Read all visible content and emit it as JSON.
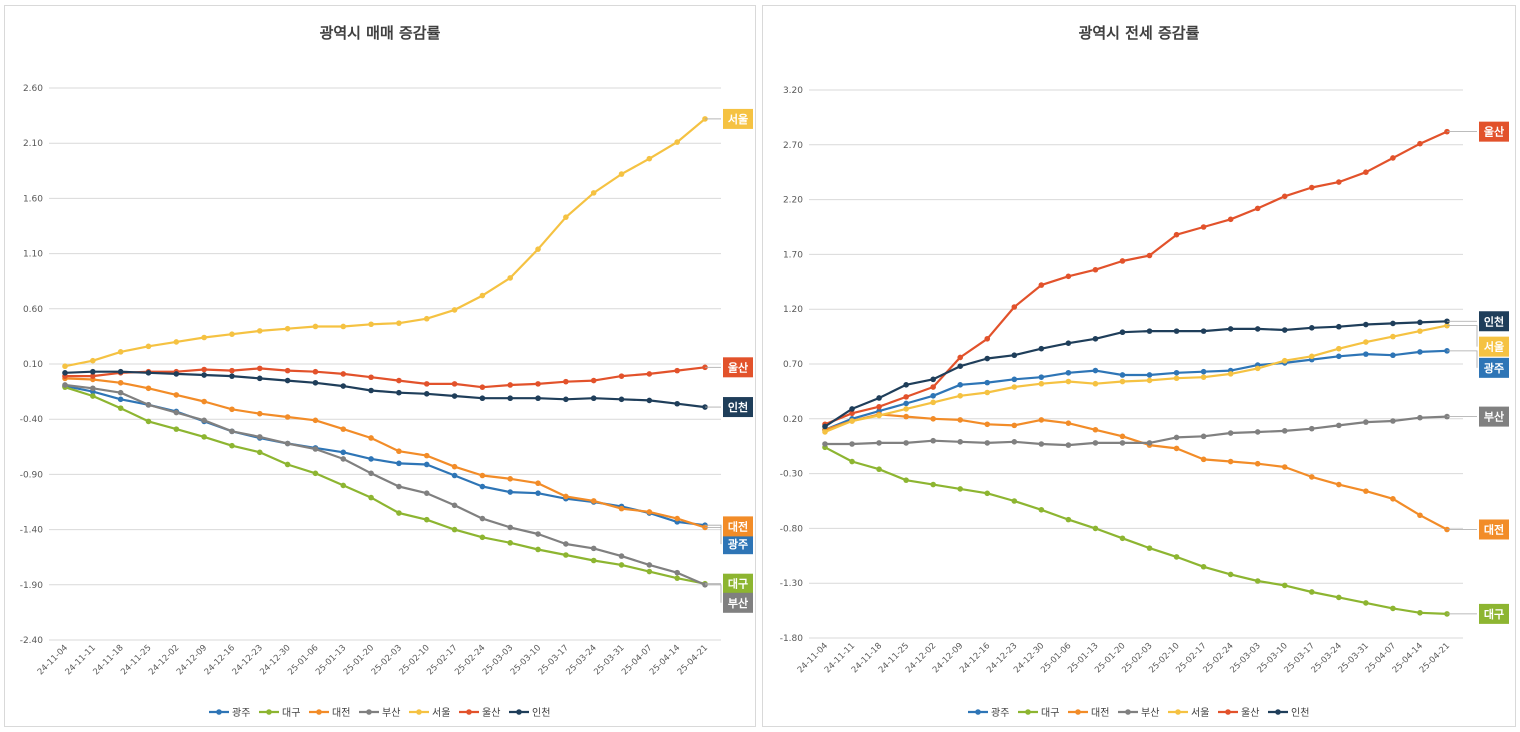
{
  "chart_data": [
    {
      "type": "line",
      "title": "광역시 매매 증감률",
      "xlabel": "",
      "ylabel": "",
      "ylim": [
        -2.4,
        2.6
      ],
      "yticks": [
        "2.60",
        "2.10",
        "1.60",
        "1.10",
        "0.60",
        "0.10",
        "-0.40",
        "-0.90",
        "-1.40",
        "-1.90",
        "-2.40"
      ],
      "grid": true,
      "legend_position": "bottom",
      "x": [
        "24-11-04",
        "24-11-11",
        "24-11-18",
        "24-11-25",
        "24-12-02",
        "24-12-09",
        "24-12-16",
        "24-12-23",
        "24-12-30",
        "25-01-06",
        "25-01-13",
        "25-01-20",
        "25-02-03",
        "25-02-10",
        "25-02-17",
        "25-02-24",
        "25-03-03",
        "25-03-10",
        "25-03-17",
        "25-03-24",
        "25-03-31",
        "25-04-07",
        "25-04-14",
        "25-04-21"
      ],
      "series": [
        {
          "name": "광주",
          "color": "#2E75B6",
          "end_label": "광주",
          "values": [
            -0.1,
            -0.15,
            -0.22,
            -0.27,
            -0.33,
            -0.42,
            -0.51,
            -0.57,
            -0.62,
            -0.66,
            -0.7,
            -0.76,
            -0.8,
            -0.81,
            -0.91,
            -1.01,
            -1.06,
            -1.07,
            -1.12,
            -1.15,
            -1.19,
            -1.25,
            -1.33,
            -1.36
          ]
        },
        {
          "name": "대구",
          "color": "#8DB531",
          "end_label": "대구",
          "values": [
            -0.11,
            -0.19,
            -0.3,
            -0.42,
            -0.49,
            -0.56,
            -0.64,
            -0.7,
            -0.81,
            -0.89,
            -1.0,
            -1.11,
            -1.25,
            -1.31,
            -1.4,
            -1.47,
            -1.52,
            -1.58,
            -1.63,
            -1.68,
            -1.72,
            -1.78,
            -1.84,
            -1.89
          ]
        },
        {
          "name": "대전",
          "color": "#F28C28",
          "end_label": "대전",
          "values": [
            -0.03,
            -0.04,
            -0.07,
            -0.12,
            -0.18,
            -0.24,
            -0.31,
            -0.35,
            -0.38,
            -0.41,
            -0.49,
            -0.57,
            -0.69,
            -0.73,
            -0.83,
            -0.91,
            -0.94,
            -0.98,
            -1.1,
            -1.14,
            -1.21,
            -1.24,
            -1.3,
            -1.38
          ]
        },
        {
          "name": "부산",
          "color": "#808080",
          "end_label": "부산",
          "values": [
            -0.09,
            -0.12,
            -0.16,
            -0.27,
            -0.34,
            -0.41,
            -0.51,
            -0.56,
            -0.62,
            -0.67,
            -0.76,
            -0.89,
            -1.01,
            -1.07,
            -1.18,
            -1.3,
            -1.38,
            -1.44,
            -1.53,
            -1.57,
            -1.64,
            -1.72,
            -1.79,
            -1.9
          ]
        },
        {
          "name": "서울",
          "color": "#F5C242",
          "end_label": "서울",
          "values": [
            0.08,
            0.13,
            0.21,
            0.26,
            0.3,
            0.34,
            0.37,
            0.4,
            0.42,
            0.44,
            0.44,
            0.46,
            0.47,
            0.51,
            0.59,
            0.72,
            0.88,
            1.14,
            1.43,
            1.65,
            1.82,
            1.96,
            2.11,
            2.32
          ]
        },
        {
          "name": "울산",
          "color": "#E2522B",
          "end_label": "울산",
          "values": [
            -0.01,
            -0.01,
            0.02,
            0.03,
            0.03,
            0.05,
            0.04,
            0.06,
            0.04,
            0.03,
            0.01,
            -0.02,
            -0.05,
            -0.08,
            -0.08,
            -0.11,
            -0.09,
            -0.08,
            -0.06,
            -0.05,
            -0.01,
            0.01,
            0.04,
            0.07
          ]
        },
        {
          "name": "인천",
          "color": "#1F3E5A",
          "end_label": "인천",
          "values": [
            0.02,
            0.03,
            0.03,
            0.02,
            0.01,
            0.0,
            -0.01,
            -0.03,
            -0.05,
            -0.07,
            -0.1,
            -0.14,
            -0.16,
            -0.17,
            -0.19,
            -0.21,
            -0.21,
            -0.21,
            -0.22,
            -0.21,
            -0.22,
            -0.23,
            -0.26,
            -0.29
          ]
        }
      ]
    },
    {
      "type": "line",
      "title": "광역시 전세 증감률",
      "xlabel": "",
      "ylabel": "",
      "ylim": [
        -1.8,
        3.2
      ],
      "yticks": [
        "3.20",
        "2.70",
        "2.20",
        "1.70",
        "1.20",
        "0.70",
        "0.20",
        "-0.30",
        "-0.80",
        "-1.30",
        "-1.80"
      ],
      "grid": true,
      "legend_position": "bottom",
      "x": [
        "24-11-04",
        "24-11-11",
        "24-11-18",
        "24-11-25",
        "24-12-02",
        "24-12-09",
        "24-12-16",
        "24-12-23",
        "24-12-30",
        "25-01-06",
        "25-01-13",
        "25-01-20",
        "25-02-03",
        "25-02-10",
        "25-02-17",
        "25-02-24",
        "25-03-03",
        "25-03-10",
        "25-03-17",
        "25-03-24",
        "25-03-31",
        "25-04-07",
        "25-04-14",
        "25-04-21"
      ],
      "series": [
        {
          "name": "광주",
          "color": "#2E75B6",
          "end_label": "광주",
          "values": [
            0.1,
            0.2,
            0.27,
            0.34,
            0.41,
            0.51,
            0.53,
            0.56,
            0.58,
            0.62,
            0.64,
            0.6,
            0.6,
            0.62,
            0.63,
            0.64,
            0.69,
            0.71,
            0.74,
            0.77,
            0.79,
            0.78,
            0.81,
            0.82
          ]
        },
        {
          "name": "대구",
          "color": "#8DB531",
          "end_label": "대구",
          "values": [
            -0.06,
            -0.19,
            -0.26,
            -0.36,
            -0.4,
            -0.44,
            -0.48,
            -0.55,
            -0.63,
            -0.72,
            -0.8,
            -0.89,
            -0.98,
            -1.06,
            -1.15,
            -1.22,
            -1.28,
            -1.32,
            -1.38,
            -1.43,
            -1.48,
            -1.53,
            -1.57,
            -1.58
          ]
        },
        {
          "name": "대전",
          "color": "#F28C28",
          "end_label": "대전",
          "values": [
            0.1,
            0.18,
            0.24,
            0.22,
            0.2,
            0.19,
            0.15,
            0.14,
            0.19,
            0.16,
            0.1,
            0.04,
            -0.04,
            -0.07,
            -0.17,
            -0.19,
            -0.21,
            -0.24,
            -0.33,
            -0.4,
            -0.46,
            -0.53,
            -0.68,
            -0.81
          ]
        },
        {
          "name": "부산",
          "color": "#808080",
          "end_label": "부산",
          "values": [
            -0.03,
            -0.03,
            -0.02,
            -0.02,
            0.0,
            -0.01,
            -0.02,
            -0.01,
            -0.03,
            -0.04,
            -0.02,
            -0.02,
            -0.02,
            0.03,
            0.04,
            0.07,
            0.08,
            0.09,
            0.11,
            0.14,
            0.17,
            0.18,
            0.21,
            0.22
          ]
        },
        {
          "name": "서울",
          "color": "#F5C242",
          "end_label": "서울",
          "values": [
            0.08,
            0.18,
            0.23,
            0.29,
            0.35,
            0.41,
            0.44,
            0.49,
            0.52,
            0.54,
            0.52,
            0.54,
            0.55,
            0.57,
            0.58,
            0.61,
            0.66,
            0.73,
            0.77,
            0.84,
            0.9,
            0.95,
            1.0,
            1.05
          ]
        },
        {
          "name": "울산",
          "color": "#E2522B",
          "end_label": "울산",
          "values": [
            0.15,
            0.25,
            0.31,
            0.4,
            0.49,
            0.76,
            0.93,
            1.22,
            1.42,
            1.5,
            1.56,
            1.64,
            1.69,
            1.88,
            1.95,
            2.02,
            2.12,
            2.23,
            2.31,
            2.36,
            2.45,
            2.58,
            2.71,
            2.82
          ]
        },
        {
          "name": "인천",
          "color": "#1F3E5A",
          "end_label": "인천",
          "values": [
            0.13,
            0.29,
            0.39,
            0.51,
            0.56,
            0.68,
            0.75,
            0.78,
            0.84,
            0.89,
            0.93,
            0.99,
            1.0,
            1.0,
            1.0,
            1.02,
            1.02,
            1.01,
            1.03,
            1.04,
            1.06,
            1.07,
            1.08,
            1.09
          ]
        }
      ]
    }
  ]
}
